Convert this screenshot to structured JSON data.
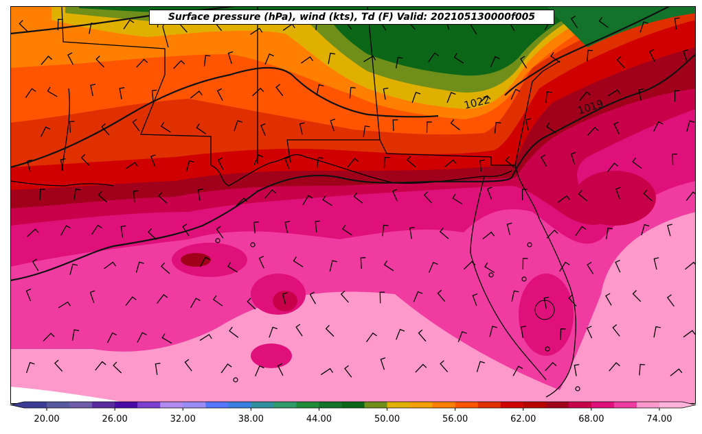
{
  "title": "Surface pressure (hPa), wind (kts), Td (F) Valid: 202105130000f005",
  "contour_labels": [
    {
      "value": "1022",
      "color": "#111111"
    },
    {
      "value": "1019",
      "color": "#111111"
    }
  ],
  "colorbar": {
    "min": 18,
    "max": 76,
    "step": 2,
    "extend": "both",
    "tick_values": [
      20,
      26,
      32,
      38,
      44,
      50,
      56,
      62,
      68,
      74
    ],
    "tick_labels": [
      "20.00",
      "26.00",
      "32.00",
      "38.00",
      "44.00",
      "50.00",
      "56.00",
      "62.00",
      "68.00",
      "74.00"
    ],
    "colors": [
      "#3d3d96",
      "#58589e",
      "#6e5ca8",
      "#5a2aa0",
      "#4a0aa8",
      "#7b3fd0",
      "#b08af0",
      "#9a8cf5",
      "#5577ff",
      "#3a7fdf",
      "#2f8f9f",
      "#2f9a6a",
      "#1f8a3a",
      "#13732a",
      "#0b6618",
      "#708f1a",
      "#e0b000",
      "#f5a000",
      "#ff7f00",
      "#ff5500",
      "#e03000",
      "#d00000",
      "#b80000",
      "#a0001a",
      "#c8004a",
      "#e0107a",
      "#f03ca0",
      "#ff99cc",
      "#ffb3d9"
    ]
  },
  "legend_colors": {
    "ocean_pink": "#ff99cc",
    "hot_pink": "#f03ca0",
    "magenta": "#e0107a",
    "crimson": "#c8004a",
    "dark_red": "#a0001a",
    "red": "#d00000",
    "red_orange": "#e03000",
    "orange_red": "#ff5500",
    "orange": "#ff7f00",
    "gold": "#e0b000",
    "olive": "#708f1a",
    "green": "#0b6618"
  }
}
